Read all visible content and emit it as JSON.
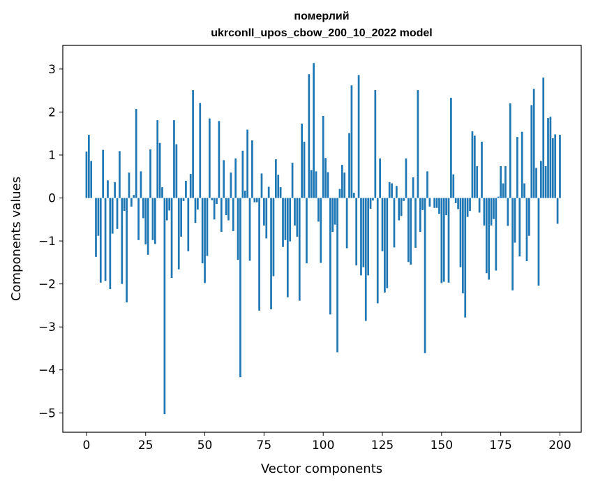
{
  "chart_data": {
    "type": "bar",
    "title": [
      "померлий",
      "ukrconll_upos_cbow_200_10_2022 model"
    ],
    "xlabel": "Vector components",
    "ylabel": "Components values",
    "xlim": [
      -10,
      209
    ],
    "ylim": [
      -5.45,
      3.55
    ],
    "xticks": [
      0,
      25,
      50,
      75,
      100,
      125,
      150,
      175,
      200
    ],
    "yticks": [
      3,
      2,
      1,
      0,
      -1,
      -2,
      -3,
      -4,
      -5
    ],
    "bar_color": "#1f77b4",
    "grid": false,
    "legend": "none",
    "values": [
      1.08,
      1.47,
      0.86,
      0.0,
      -1.37,
      -0.88,
      -1.97,
      1.12,
      -1.93,
      0.41,
      -2.12,
      -0.83,
      0.37,
      -0.72,
      1.09,
      -2.0,
      -0.3,
      -2.43,
      0.59,
      -0.2,
      0.07,
      2.07,
      -0.98,
      0.62,
      -0.47,
      -1.08,
      -1.32,
      1.13,
      -0.98,
      -1.07,
      1.81,
      1.28,
      0.25,
      -5.03,
      -0.52,
      -0.29,
      -1.86,
      1.81,
      1.25,
      -1.66,
      -0.9,
      -0.07,
      0.4,
      -1.24,
      0.56,
      2.51,
      -0.58,
      -0.27,
      2.21,
      -1.52,
      -1.98,
      -1.35,
      1.85,
      -0.05,
      -0.5,
      -0.14,
      1.79,
      -0.79,
      0.88,
      -0.4,
      -0.52,
      0.59,
      -0.77,
      0.92,
      -1.44,
      -4.17,
      1.1,
      0.17,
      1.59,
      -1.46,
      1.34,
      -0.1,
      -0.1,
      -2.62,
      0.57,
      -0.64,
      -0.94,
      0.26,
      -2.59,
      -1.82,
      0.9,
      0.54,
      0.25,
      -1.14,
      -0.98,
      -2.31,
      -1.01,
      0.82,
      -0.64,
      -0.9,
      -2.39,
      1.73,
      1.31,
      -1.52,
      2.88,
      0.65,
      3.14,
      0.62,
      -0.55,
      -1.51,
      1.91,
      0.93,
      0.6,
      -2.71,
      -0.79,
      -0.62,
      -3.59,
      0.21,
      0.77,
      0.59,
      -1.17,
      1.51,
      2.62,
      0.12,
      -1.57,
      2.86,
      -1.8,
      -1.61,
      -2.86,
      -1.8,
      -0.25,
      -0.06,
      2.51,
      -2.45,
      0.92,
      -1.24,
      -2.2,
      -2.1,
      0.37,
      0.34,
      -1.15,
      0.28,
      -0.52,
      -0.42,
      -0.07,
      0.92,
      -1.49,
      -1.55,
      0.48,
      -1.16,
      2.51,
      -0.79,
      -0.28,
      -3.61,
      0.62,
      -0.2,
      0.0,
      -0.23,
      -0.23,
      -0.37,
      -1.98,
      -1.95,
      -0.4,
      -1.97,
      2.33,
      0.55,
      -0.12,
      -0.26,
      -1.61,
      -2.22,
      -2.78,
      -0.44,
      -0.3,
      1.55,
      1.45,
      0.74,
      -0.34,
      1.31,
      -0.64,
      -1.75,
      -1.9,
      -0.64,
      -0.49,
      -1.69,
      0.03,
      0.74,
      0.34,
      0.74,
      -0.65,
      2.2,
      -2.15,
      -1.04,
      1.42,
      -1.36,
      1.54,
      0.34,
      -1.47,
      -0.88,
      2.16,
      2.54,
      0.7,
      -2.04,
      0.86,
      2.8,
      0.74,
      1.86,
      1.89,
      1.39,
      1.48,
      -0.6,
      1.47
    ]
  }
}
